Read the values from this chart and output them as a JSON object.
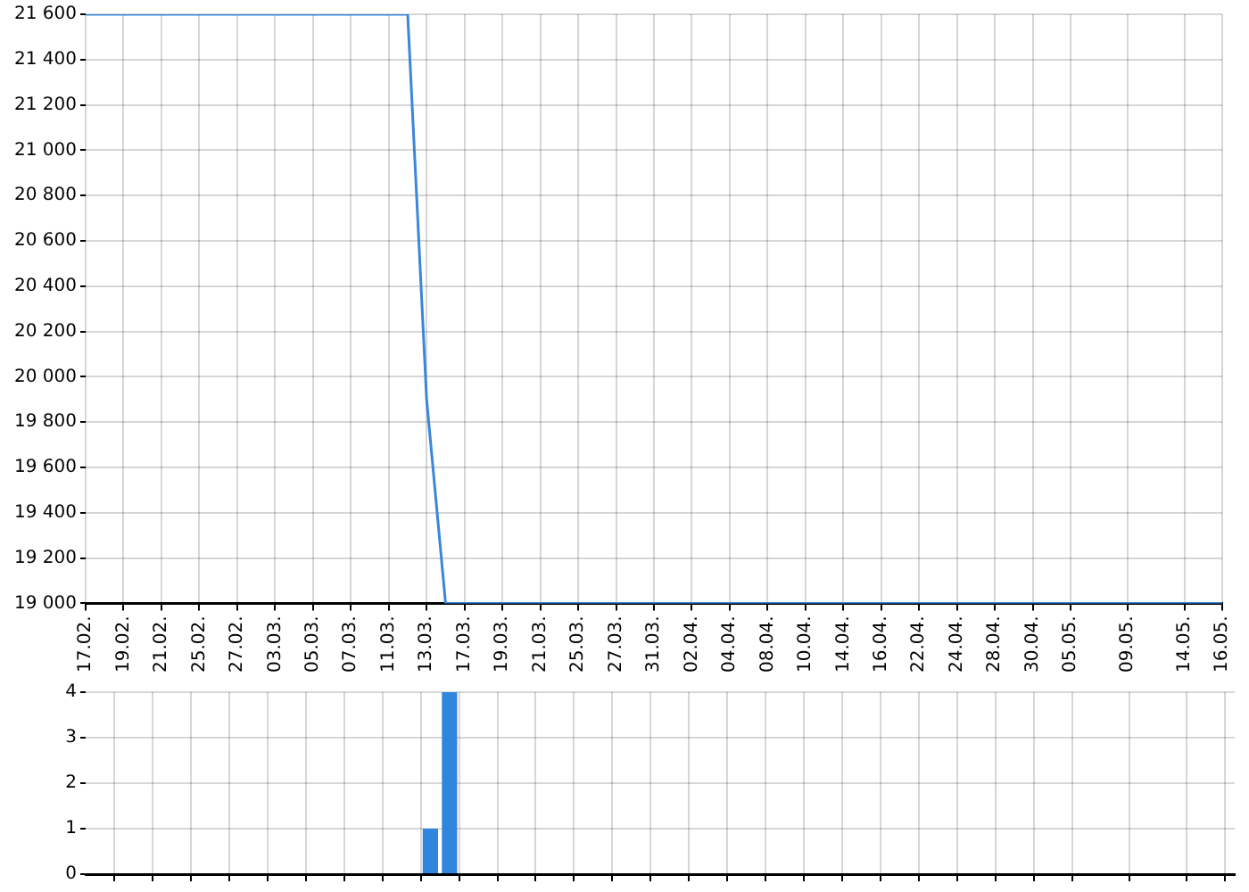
{
  "chart_data": [
    {
      "type": "line",
      "categories": [
        "17.02.",
        null,
        "19.02.",
        null,
        "21.02.",
        null,
        "25.02.",
        null,
        "27.02.",
        null,
        "03.03.",
        null,
        "05.03.",
        null,
        "07.03.",
        null,
        "11.03.",
        null,
        "13.03.",
        null,
        "17.03.",
        null,
        "19.03.",
        null,
        "21.03.",
        null,
        "25.03.",
        null,
        "27.03.",
        null,
        "31.03.",
        null,
        "02.04.",
        null,
        "04.04.",
        null,
        "08.04.",
        null,
        "10.04.",
        null,
        "14.04.",
        null,
        "16.04.",
        null,
        "22.04.",
        null,
        "24.04.",
        null,
        "28.04.",
        null,
        "30.04.",
        null,
        "05.05.",
        null,
        null,
        "09.05.",
        null,
        null,
        "14.05.",
        null,
        "16.05."
      ],
      "values": [
        21600,
        21600,
        21600,
        21600,
        21600,
        21600,
        21600,
        21600,
        21600,
        21600,
        21600,
        21600,
        21600,
        21600,
        21600,
        21600,
        21600,
        21600,
        19900,
        19000,
        19000,
        19000,
        19000,
        19000,
        19000,
        19000,
        19000,
        19000,
        19000,
        19000,
        19000,
        19000,
        19000,
        19000,
        19000,
        19000,
        19000,
        19000,
        19000,
        19000,
        19000,
        19000,
        19000,
        19000,
        19000,
        19000,
        19000,
        19000,
        19000,
        19000,
        19000,
        19000,
        19000,
        19000,
        19000,
        19000,
        19000,
        19000,
        19000,
        19000,
        19000
      ],
      "color": "#3a86d9",
      "ylim": [
        19000,
        21600
      ],
      "yticks": [
        {
          "value": 19000,
          "label": "19 000"
        },
        {
          "value": 19200,
          "label": "19 200"
        },
        {
          "value": 19400,
          "label": "19 400"
        },
        {
          "value": 19600,
          "label": "19 600"
        },
        {
          "value": 19800,
          "label": "19 800"
        },
        {
          "value": 20000,
          "label": "20 000"
        },
        {
          "value": 20200,
          "label": "20 200"
        },
        {
          "value": 20400,
          "label": "20 400"
        },
        {
          "value": 20600,
          "label": "20 600"
        },
        {
          "value": 20800,
          "label": "20 800"
        },
        {
          "value": 21000,
          "label": "21 000"
        },
        {
          "value": 21200,
          "label": "21 200"
        },
        {
          "value": 21400,
          "label": "21 400"
        },
        {
          "value": 21600,
          "label": "21 600"
        }
      ],
      "grid": true,
      "marker": "none"
    },
    {
      "type": "bar",
      "categories": [
        "17.02.",
        null,
        "19.02.",
        null,
        "21.02.",
        null,
        "25.02.",
        null,
        "27.02.",
        null,
        "03.03.",
        null,
        "05.03.",
        null,
        "07.03.",
        null,
        "11.03.",
        null,
        "13.03.",
        null,
        "17.03.",
        null,
        "19.03.",
        null,
        "21.03.",
        null,
        "25.03.",
        null,
        "27.03.",
        null,
        "31.03.",
        null,
        "02.04.",
        null,
        "04.04.",
        null,
        "08.04.",
        null,
        "10.04.",
        null,
        "14.04.",
        null,
        "16.04.",
        null,
        "22.04.",
        null,
        "24.04.",
        null,
        "28.04.",
        null,
        "30.04.",
        null,
        "05.05.",
        null,
        null,
        "09.05.",
        null,
        null,
        "14.05.",
        null,
        "16.05."
      ],
      "values": [
        0,
        0,
        0,
        0,
        0,
        0,
        0,
        0,
        0,
        0,
        0,
        0,
        0,
        0,
        0,
        0,
        0,
        0,
        1,
        4,
        0,
        0,
        0,
        0,
        0,
        0,
        0,
        0,
        0,
        0,
        0,
        0,
        0,
        0,
        0,
        0,
        0,
        0,
        0,
        0,
        0,
        0,
        0,
        0,
        0,
        0,
        0,
        0,
        0,
        0,
        0,
        0,
        0,
        0,
        0,
        0,
        0,
        0,
        0,
        0,
        0
      ],
      "color": "#2f86dc",
      "ylim": [
        0,
        4
      ],
      "yticks": [
        0,
        1,
        2,
        3,
        4
      ],
      "grid": true,
      "tick_labels": "y"
    }
  ]
}
